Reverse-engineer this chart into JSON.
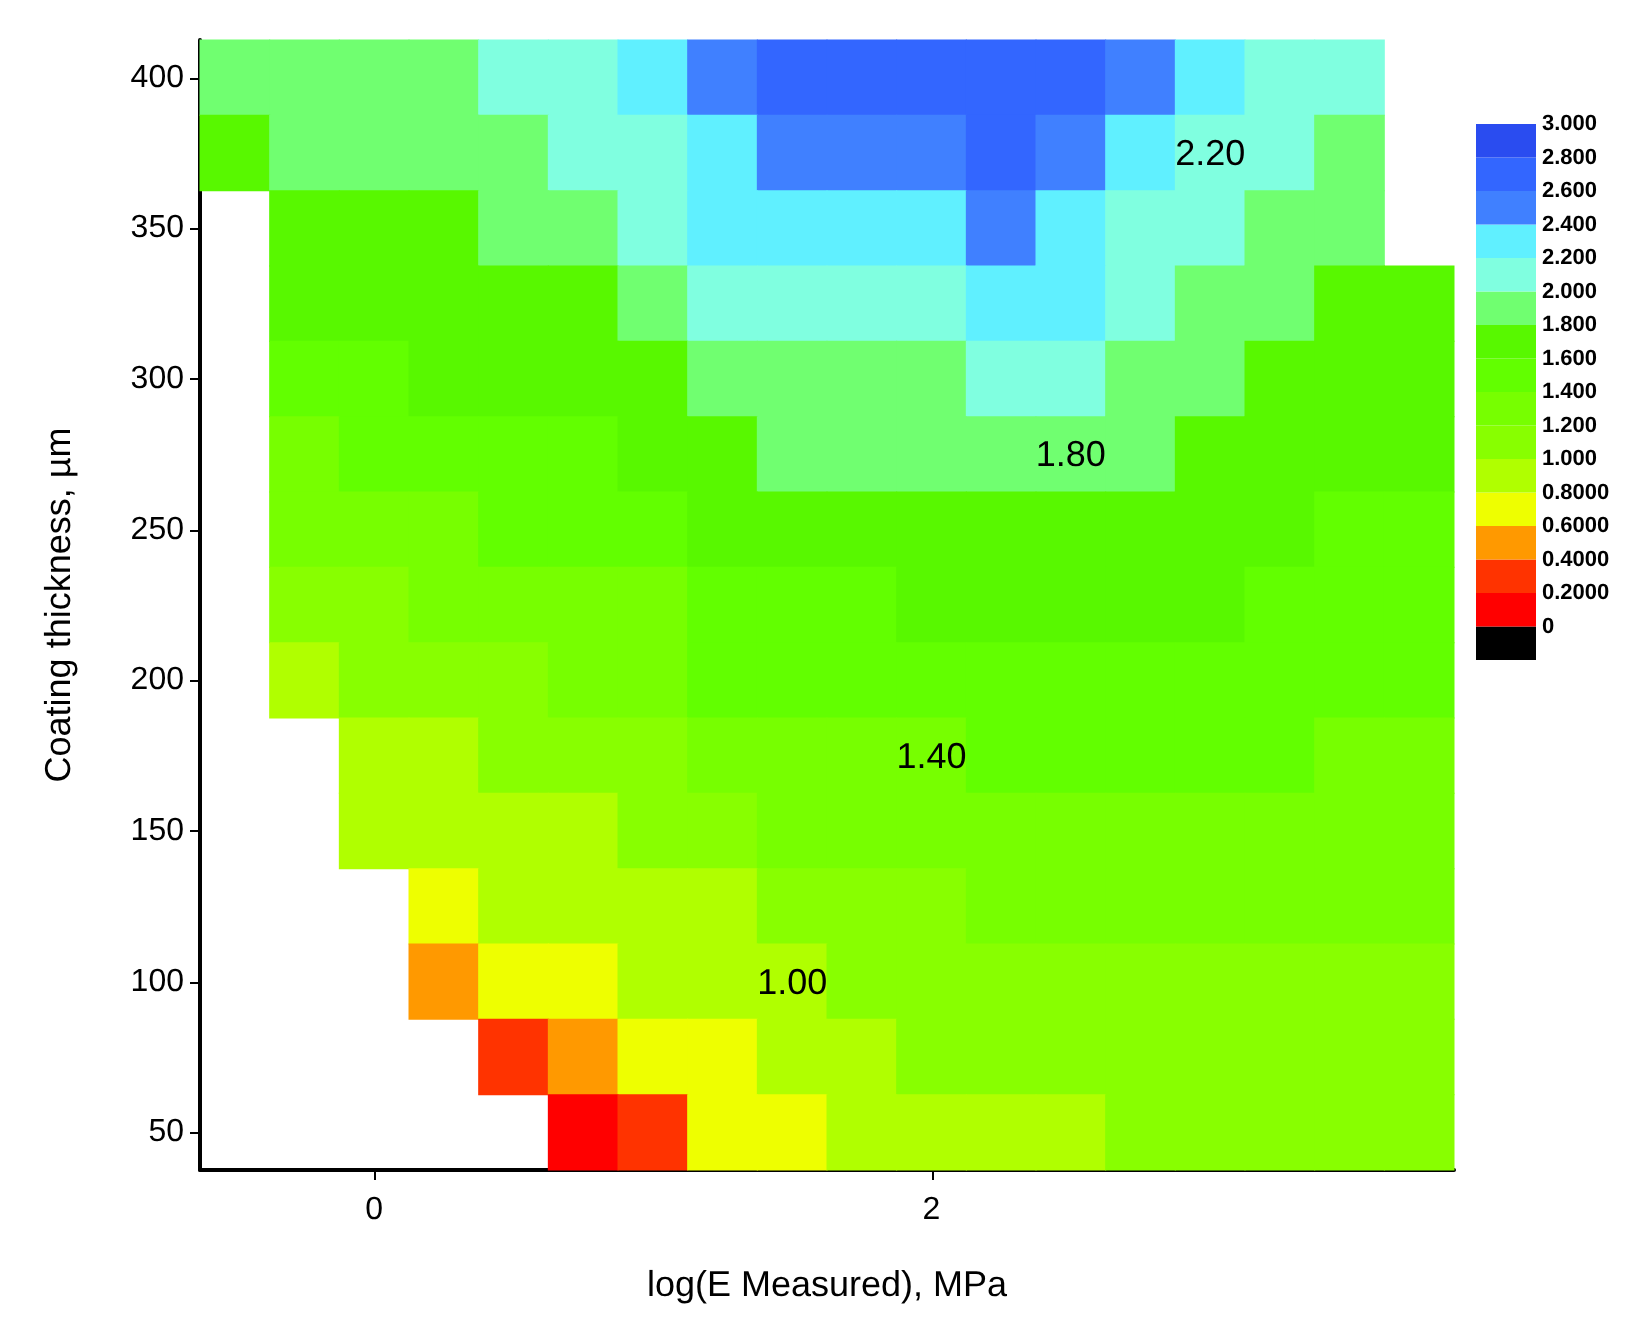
{
  "chart_data": {
    "type": "heatmap",
    "xlabel": "log(E Measured), MPa",
    "ylabel": "Coating thickness, µm",
    "categories": [
      null,
      null,
      "0",
      null,
      null,
      null,
      null,
      null,
      null,
      null,
      "2",
      null,
      null,
      null,
      null,
      null,
      null,
      null
    ],
    "y_categories": [
      "400",
      null,
      "350",
      null,
      "300",
      null,
      "250",
      null,
      "200",
      null,
      "150",
      null,
      "100",
      null,
      "50"
    ],
    "cells": [
      [
        1.85,
        1.88,
        1.9,
        1.95,
        2.05,
        2.1,
        2.3,
        2.45,
        2.6,
        2.7,
        2.7,
        2.75,
        2.65,
        2.45,
        2.3,
        2.12,
        2.05,
        null
      ],
      [
        1.78,
        1.8,
        1.82,
        1.87,
        1.93,
        2.0,
        2.15,
        2.3,
        2.45,
        2.5,
        2.5,
        2.6,
        2.5,
        2.3,
        2.15,
        2.02,
        1.95,
        null
      ],
      [
        null,
        1.7,
        1.75,
        1.78,
        1.83,
        1.9,
        2.0,
        2.2,
        2.3,
        2.3,
        2.3,
        2.4,
        2.32,
        2.15,
        2.05,
        1.92,
        1.86,
        null
      ],
      [
        null,
        1.6,
        1.65,
        1.7,
        1.73,
        1.78,
        1.9,
        2.05,
        2.1,
        2.1,
        2.1,
        2.25,
        2.2,
        2.05,
        1.93,
        1.84,
        1.78,
        1.76
      ],
      [
        null,
        1.48,
        1.55,
        1.6,
        1.64,
        1.68,
        1.75,
        1.9,
        1.9,
        1.92,
        1.95,
        2.05,
        2.05,
        1.93,
        1.84,
        1.76,
        1.71,
        1.7
      ],
      [
        null,
        1.35,
        1.45,
        1.5,
        1.55,
        1.58,
        1.65,
        1.78,
        1.8,
        1.8,
        1.82,
        1.85,
        1.86,
        1.82,
        1.76,
        1.7,
        1.65,
        1.64
      ],
      [
        null,
        1.22,
        1.3,
        1.38,
        1.44,
        1.47,
        1.52,
        1.66,
        1.68,
        1.69,
        1.7,
        1.72,
        1.74,
        1.72,
        1.68,
        1.63,
        1.59,
        1.58
      ],
      [
        null,
        1.08,
        1.15,
        1.24,
        1.32,
        1.35,
        1.4,
        1.54,
        1.57,
        1.58,
        1.6,
        1.62,
        1.64,
        1.63,
        1.6,
        1.56,
        1.52,
        1.52
      ],
      [
        null,
        0.95,
        1.05,
        1.12,
        1.2,
        1.24,
        1.28,
        1.42,
        1.46,
        1.48,
        1.5,
        1.52,
        1.54,
        1.54,
        1.52,
        1.49,
        1.46,
        1.45
      ],
      [
        null,
        null,
        0.95,
        1.0,
        1.08,
        1.12,
        1.15,
        1.3,
        1.35,
        1.37,
        1.4,
        1.42,
        1.44,
        1.45,
        1.44,
        1.42,
        1.39,
        1.38
      ],
      [
        null,
        null,
        0.85,
        0.88,
        0.93,
        0.97,
        1.02,
        1.16,
        1.22,
        1.26,
        1.3,
        1.32,
        1.34,
        1.36,
        1.36,
        1.35,
        1.32,
        1.32
      ],
      [
        null,
        null,
        null,
        0.7,
        0.8,
        0.88,
        0.93,
        1.0,
        1.1,
        1.15,
        1.2,
        1.22,
        1.25,
        1.27,
        1.28,
        1.27,
        1.25,
        1.25
      ],
      [
        null,
        null,
        null,
        0.5,
        0.65,
        0.7,
        0.82,
        0.88,
        0.98,
        1.04,
        1.1,
        1.12,
        1.16,
        1.19,
        1.2,
        1.2,
        1.18,
        1.18
      ],
      [
        null,
        null,
        null,
        null,
        0.3,
        0.5,
        0.65,
        0.78,
        0.88,
        0.95,
        1.02,
        1.05,
        1.08,
        1.11,
        1.12,
        1.13,
        1.11,
        1.11
      ],
      [
        null,
        null,
        null,
        null,
        null,
        0.15,
        0.3,
        0.65,
        0.78,
        0.88,
        0.95,
        0.98,
        1.0,
        1.04,
        1.05,
        1.06,
        1.05,
        1.05
      ]
    ],
    "clim": [
      -0.2,
      3.0
    ],
    "cticks": [
      {
        "value": 3.0,
        "label": "3.000"
      },
      {
        "value": 2.8,
        "label": "2.800"
      },
      {
        "value": 2.6,
        "label": "2.600"
      },
      {
        "value": 2.4,
        "label": "2.400"
      },
      {
        "value": 2.2,
        "label": "2.200"
      },
      {
        "value": 2.0,
        "label": "2.000"
      },
      {
        "value": 1.8,
        "label": "1.800"
      },
      {
        "value": 1.6,
        "label": "1.600"
      },
      {
        "value": 1.4,
        "label": "1.400"
      },
      {
        "value": 1.2,
        "label": "1.200"
      },
      {
        "value": 1.0,
        "label": "1.000"
      },
      {
        "value": 0.8,
        "label": "0.8000"
      },
      {
        "value": 0.6,
        "label": "0.6000"
      },
      {
        "value": 0.4,
        "label": "0.4000"
      },
      {
        "value": 0.2,
        "label": "0.2000"
      },
      {
        "value": 0,
        "label": "0"
      }
    ],
    "colors": [
      "#000000",
      "#ff0000",
      "#ff3300",
      "#ff9900",
      "#eeff00",
      "#b0ff00",
      "#88ff00",
      "#77ff00",
      "#62ff00",
      "#58f800",
      "#70ff70",
      "#80ffe0",
      "#60f0ff",
      "#4080ff",
      "#3366ff",
      "#2a4cf0"
    ],
    "annotations": [
      "2.20",
      "1.80",
      "1.40",
      "1.00"
    ]
  }
}
